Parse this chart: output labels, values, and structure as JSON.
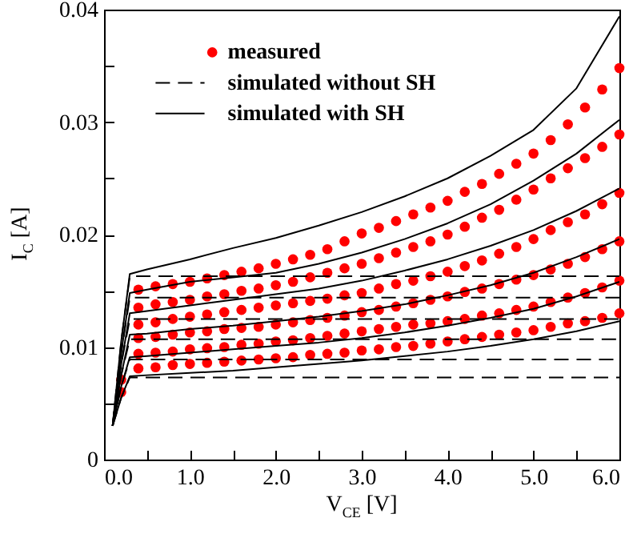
{
  "chart_data": {
    "type": "scatter",
    "xlabel": "V$_{CE}$ [V]",
    "ylabel": "I$_{C}$ [A]",
    "xlim": [
      0,
      6
    ],
    "ylim": [
      0,
      0.04
    ],
    "xticks": [
      {
        "value": 0,
        "label": "0.0"
      },
      {
        "value": 0.5,
        "label": null
      },
      {
        "value": 1,
        "label": "1.0"
      },
      {
        "value": 1.5,
        "label": null
      },
      {
        "value": 2,
        "label": "2.0"
      },
      {
        "value": 2.5,
        "label": null
      },
      {
        "value": 3,
        "label": "3.0"
      },
      {
        "value": 3.5,
        "label": null
      },
      {
        "value": 4,
        "label": "4.0"
      },
      {
        "value": 4.5,
        "label": null
      },
      {
        "value": 5,
        "label": "5.0"
      },
      {
        "value": 5.5,
        "label": null
      },
      {
        "value": 6,
        "label": "6.0"
      }
    ],
    "yticks": [
      0,
      {
        "value": 0.005,
        "label": null
      },
      0.01,
      {
        "value": 0.015,
        "label": null
      },
      0.02,
      {
        "value": 0.025,
        "label": null
      },
      0.03,
      {
        "value": 0.035,
        "label": null
      },
      0.04
    ],
    "legend": "top left",
    "series": [
      {
        "name": "measured",
        "marker": "circle",
        "color": "#ff0000",
        "x": [
          0.2,
          0.4,
          0.6,
          0.8,
          1.0,
          1.2,
          1.4,
          1.6,
          1.8,
          2.0,
          2.2,
          2.4,
          2.6,
          2.8,
          3.0,
          3.2,
          3.4,
          3.6,
          3.8,
          4.0,
          4.2,
          4.4,
          4.6,
          4.8,
          5.0,
          5.2,
          5.4,
          5.6,
          5.8,
          6.0
        ],
        "values": [
          0.006,
          0.0081,
          0.0082,
          0.0084,
          0.0085,
          0.0086,
          0.0087,
          0.0088,
          0.0089,
          0.009,
          0.0091,
          0.0093,
          0.0094,
          0.0095,
          0.0097,
          0.0098,
          0.01,
          0.0101,
          0.0103,
          0.0105,
          0.0107,
          0.0109,
          0.0111,
          0.0113,
          0.0115,
          0.0118,
          0.0121,
          0.0123,
          0.0126,
          0.013
        ]
      },
      {
        "type": "scatter",
        "color": "#ff0000",
        "x": [
          0.4,
          0.6,
          0.8,
          1.0,
          1.2,
          1.4,
          1.6,
          1.8,
          2.0,
          2.2,
          2.4,
          2.6,
          2.8,
          3.0,
          3.2,
          3.4,
          3.6,
          3.8,
          4.0,
          4.2,
          4.4,
          4.6,
          4.8,
          5.0,
          5.2,
          5.4,
          5.6,
          5.8,
          6.0
        ],
        "values": [
          0.0094,
          0.0095,
          0.0096,
          0.0098,
          0.0099,
          0.01,
          0.0102,
          0.0103,
          0.0105,
          0.0106,
          0.0108,
          0.011,
          0.0112,
          0.0114,
          0.0116,
          0.0118,
          0.012,
          0.0121,
          0.0123,
          0.0125,
          0.0128,
          0.013,
          0.0133,
          0.0136,
          0.014,
          0.0144,
          0.0148,
          0.0153,
          0.0159
        ]
      },
      {
        "type": "scatter",
        "color": "#ff0000",
        "x": [
          0.4,
          0.6,
          0.8,
          1.0,
          1.2,
          1.4,
          1.6,
          1.8,
          2.0,
          2.2,
          2.4,
          2.6,
          2.8,
          3.0,
          3.2,
          3.4,
          3.6,
          3.8,
          4.0,
          4.2,
          4.4,
          4.6,
          4.8,
          5.0,
          5.2,
          5.4,
          5.6,
          5.8,
          6.0
        ],
        "values": [
          0.0108,
          0.0109,
          0.0111,
          0.0113,
          0.0114,
          0.0116,
          0.0117,
          0.0118,
          0.012,
          0.0122,
          0.0124,
          0.0126,
          0.0128,
          0.0131,
          0.0133,
          0.0136,
          0.0139,
          0.0142,
          0.0145,
          0.0149,
          0.0152,
          0.0156,
          0.016,
          0.0164,
          0.0169,
          0.0174,
          0.018,
          0.0187,
          0.0194
        ]
      },
      {
        "type": "scatter",
        "color": "#ff0000",
        "x": [
          0.4,
          0.6,
          0.8,
          1.0,
          1.2,
          1.4,
          1.6,
          1.8,
          2.0,
          2.2,
          2.4,
          2.6,
          2.8,
          3.0,
          3.2,
          3.4,
          3.6,
          3.8,
          4.0,
          4.2,
          4.4,
          4.6,
          4.8,
          5.0,
          5.2,
          5.4,
          5.6,
          5.8,
          6.0
        ],
        "values": [
          0.012,
          0.0122,
          0.0125,
          0.0127,
          0.0129,
          0.0131,
          0.0133,
          0.0135,
          0.0137,
          0.0139,
          0.0141,
          0.0143,
          0.0146,
          0.0148,
          0.0152,
          0.0156,
          0.0159,
          0.0163,
          0.0167,
          0.0172,
          0.0177,
          0.0183,
          0.0189,
          0.0196,
          0.0204,
          0.0211,
          0.0218,
          0.0227,
          0.0237
        ]
      },
      {
        "type": "scatter",
        "color": "#ff0000",
        "x": [
          0.4,
          0.6,
          0.8,
          1.0,
          1.2,
          1.4,
          1.6,
          1.8,
          2.0,
          2.2,
          2.4,
          2.6,
          2.8,
          3.0,
          3.2,
          3.4,
          3.6,
          3.8,
          4.0,
          4.2,
          4.4,
          4.6,
          4.8,
          5.0,
          5.2,
          5.4,
          5.6,
          5.8,
          6.0
        ],
        "values": [
          0.0135,
          0.0138,
          0.014,
          0.0142,
          0.0145,
          0.0147,
          0.015,
          0.0152,
          0.0155,
          0.0158,
          0.0162,
          0.0166,
          0.017,
          0.0174,
          0.0179,
          0.0184,
          0.0189,
          0.0194,
          0.02,
          0.0207,
          0.0215,
          0.0222,
          0.0231,
          0.024,
          0.025,
          0.0259,
          0.0268,
          0.0278,
          0.0289
        ]
      },
      {
        "marker": "circle",
        "color": "#ff0000",
        "x": [
          0.2,
          0.4,
          0.6,
          0.8,
          1.0,
          1.2,
          1.4,
          1.6,
          1.8,
          2.0,
          2.2,
          2.4,
          2.6,
          2.8,
          3.0,
          3.2,
          3.4,
          3.6,
          3.8,
          4.0,
          4.2,
          4.4,
          4.6,
          4.8,
          5.0,
          5.2,
          5.4,
          5.6,
          5.8,
          6.0
        ],
        "values": [
          0.0071,
          0.0151,
          0.0154,
          0.0156,
          0.0158,
          0.0161,
          0.0164,
          0.0167,
          0.017,
          0.0174,
          0.0178,
          0.0182,
          0.0187,
          0.0194,
          0.0201,
          0.0206,
          0.0212,
          0.0218,
          0.0224,
          0.023,
          0.0238,
          0.0245,
          0.0254,
          0.0263,
          0.0272,
          0.0284,
          0.0298,
          0.0313,
          0.0329,
          0.0348
        ]
      },
      {
        "name": "simulated without SH",
        "type": "line",
        "line_style": "dashed",
        "color": "#000000",
        "x": [
          0.1,
          0.2,
          0.3,
          6.0
        ],
        "values": [
          0.003,
          0.0055,
          0.0073,
          0.0073
        ]
      },
      {
        "type": "line",
        "line_style": "dashed",
        "color": "#000000",
        "x": [
          0.1,
          0.2,
          0.3,
          6.0
        ],
        "values": [
          0.003,
          0.0065,
          0.0089,
          0.0089
        ]
      },
      {
        "type": "line",
        "line_style": "dashed",
        "color": "#000000",
        "x": [
          0.1,
          0.2,
          0.3,
          6.0
        ],
        "values": [
          0.003,
          0.0075,
          0.0107,
          0.0107
        ]
      },
      {
        "type": "line",
        "line_style": "dashed",
        "color": "#000000",
        "x": [
          0.1,
          0.2,
          0.3,
          6.0
        ],
        "values": [
          0.003,
          0.0085,
          0.0125,
          0.0125
        ]
      },
      {
        "type": "line",
        "line_style": "dashed",
        "color": "#000000",
        "x": [
          0.1,
          0.2,
          0.3,
          6.0
        ],
        "values": [
          0.003,
          0.0095,
          0.0144,
          0.0144
        ]
      },
      {
        "type": "line",
        "line_style": "dashed",
        "color": "#000000",
        "x": [
          0.1,
          0.2,
          0.3,
          6.0
        ],
        "values": [
          0.003,
          0.0105,
          0.0163,
          0.0163
        ]
      },
      {
        "name": "simulated with SH",
        "type": "line",
        "line_style": "solid",
        "color": "#000000",
        "x": [
          0.1,
          0.2,
          0.3,
          0.5,
          1.0,
          1.5,
          2.0,
          2.5,
          3.0,
          3.5,
          4.0,
          4.5,
          5.0,
          5.5,
          6.0
        ],
        "values": [
          0.003,
          0.0055,
          0.0074,
          0.0075,
          0.0077,
          0.0079,
          0.0082,
          0.0085,
          0.0088,
          0.0092,
          0.0096,
          0.0101,
          0.0107,
          0.0114,
          0.0123
        ]
      },
      {
        "type": "line",
        "line_style": "solid",
        "color": "#000000",
        "x": [
          0.1,
          0.2,
          0.3,
          0.5,
          1.0,
          1.5,
          2.0,
          2.5,
          3.0,
          3.5,
          4.0,
          4.5,
          5.0,
          5.5,
          6.0
        ],
        "values": [
          0.003,
          0.0065,
          0.0091,
          0.0092,
          0.0095,
          0.0098,
          0.0101,
          0.0104,
          0.0108,
          0.0113,
          0.0119,
          0.0126,
          0.0134,
          0.0145,
          0.0158
        ]
      },
      {
        "type": "line",
        "line_style": "solid",
        "color": "#000000",
        "x": [
          0.1,
          0.2,
          0.3,
          0.5,
          1.0,
          1.5,
          2.0,
          2.5,
          3.0,
          3.5,
          4.0,
          4.5,
          5.0,
          5.5,
          6.0
        ],
        "values": [
          0.003,
          0.0075,
          0.0111,
          0.0112,
          0.0116,
          0.0119,
          0.0123,
          0.0127,
          0.0132,
          0.0138,
          0.0146,
          0.0155,
          0.0166,
          0.018,
          0.0196
        ]
      },
      {
        "type": "line",
        "line_style": "solid",
        "color": "#000000",
        "x": [
          0.1,
          0.2,
          0.3,
          0.5,
          1.0,
          1.5,
          2.0,
          2.5,
          3.0,
          3.5,
          4.0,
          4.5,
          5.0,
          5.5,
          6.0
        ],
        "values": [
          0.003,
          0.0085,
          0.013,
          0.0132,
          0.0137,
          0.0142,
          0.0147,
          0.0152,
          0.0159,
          0.0168,
          0.0178,
          0.019,
          0.0204,
          0.0221,
          0.0241
        ]
      },
      {
        "type": "line",
        "line_style": "solid",
        "color": "#000000",
        "x": [
          0.1,
          0.2,
          0.3,
          0.5,
          1.0,
          1.5,
          2.0,
          2.5,
          3.0,
          3.5,
          4.0,
          4.5,
          5.0,
          5.5,
          6.0
        ],
        "values": [
          0.003,
          0.0095,
          0.0148,
          0.0151,
          0.0158,
          0.0162,
          0.0166,
          0.0174,
          0.0184,
          0.0196,
          0.021,
          0.0227,
          0.0248,
          0.0272,
          0.0302
        ]
      },
      {
        "type": "line",
        "line_style": "solid",
        "color": "#000000",
        "x": [
          0.1,
          0.2,
          0.3,
          0.5,
          1.0,
          1.5,
          2.0,
          2.5,
          3.0,
          3.5,
          4.0,
          4.5,
          5.0,
          5.5,
          6.0
        ],
        "values": [
          0.003,
          0.0105,
          0.0165,
          0.0169,
          0.0178,
          0.0188,
          0.0197,
          0.0208,
          0.022,
          0.0234,
          0.025,
          0.027,
          0.0293,
          0.033,
          0.0394
        ]
      }
    ]
  }
}
